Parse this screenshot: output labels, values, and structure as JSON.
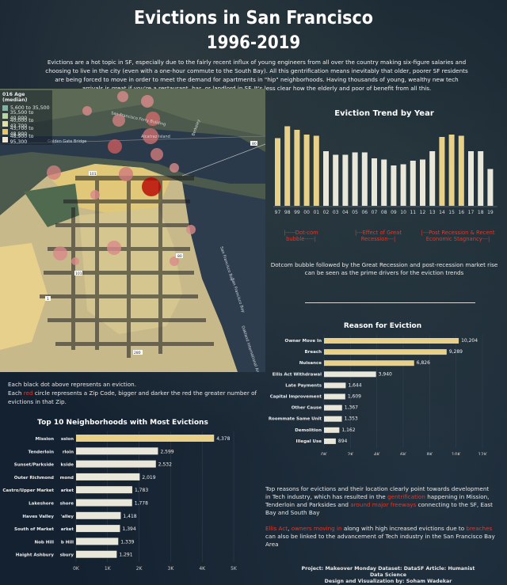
{
  "header": {
    "title": "Evictions in San Francisco",
    "years": "1996-2019",
    "intro": "Evictions are a hot topic in SF, especially due to the fairly recent influx of young engineers from all over the country making six-figure salaries and choosing to live in the city (even with a one-hour commute to the South Bay). All this gentrification means inevitably that older, poorer SF residents are being forced to move in order to meet the demand for apartments in \"hip\" neighborhoods. Having thousands of young, wealthy new tech arrivals is great if you're a restaurant, bar, or landlord in SF. It's less clear how the elderly and poor of benefit from all this."
  },
  "map": {
    "legend_title": "016 Age (median)",
    "legend": [
      {
        "label": "5,600 to 35,500",
        "color": "#7fb3a6"
      },
      {
        "label": "35,500 to 40,000",
        "color": "#b9d6a0"
      },
      {
        "label": "40,000 to 43,700",
        "color": "#e4e1a4"
      },
      {
        "label": "43,700 to 48,900",
        "color": "#e9c46a"
      },
      {
        "label": "48,900 to 95,300",
        "color": "#f3e7c9"
      }
    ],
    "labels": [
      "San Francisco Ferry Building",
      "Golden Gate Bridge",
      "Alcatraz Island",
      "Berkeley",
      "San Francisco Bay",
      "San Francisco Bay",
      "Oakland International Airport"
    ],
    "highway_shields": [
      "101",
      "101",
      "80",
      "80",
      "1",
      "280"
    ],
    "note_line1": "Each black dot above represents an eviction.",
    "note_line2_pre": "Each ",
    "note_line2_red": "red",
    "note_line2_post": " circle represents a Zip Code, bigger and darker the red the greater number of evictions in that Zip."
  },
  "trend": {
    "title": "Eviction Trend by Year",
    "phases": [
      {
        "label": "|-----Dot-com bubble-----|"
      },
      {
        "label": "|---Effect of Great Recession---|"
      },
      {
        "label": "|---Post Recession & Recent Economic Stagnancy---|"
      }
    ],
    "annotation": "Dotcom bubble followed by the Great Recession and post-recession market rise can be seen as the prime drivers for the eviction trends"
  },
  "reasons_title": "Reason for Eviction",
  "neighborhoods_title": "Top 10 Neighborhoods with Most Evictions",
  "bottom": {
    "p1_a": "Top reasons for evictions and their location clearly point towards development in Tech industry, which has resulted in the ",
    "p1_b": "gentrification",
    "p1_c": " happening in Mission, Tenderloin and Parksides and ",
    "p1_d": "around major freeways",
    "p1_e": " connecting to the SF, East Bay and South Bay",
    "p2_a": "Ellis Act",
    "p2_b": ", ",
    "p2_c": "owners moving in",
    "p2_d": " along with high increased evictions due to ",
    "p2_e": "breaches",
    "p2_f": " can also be linked to the advancement of Tech industry in the San Francisco Bay Area"
  },
  "credits": {
    "line1": "Project: Makeover Monday    Dataset: DataSF    Article: Humanist Data Science",
    "line2": "Design and Visualization by: Soham Wadekar"
  },
  "colors": {
    "highlight": "#e8d088",
    "bar_light": "#e9e6da",
    "accent_red": "#e0392b"
  },
  "chart_data": [
    {
      "type": "bar",
      "title": "Eviction Trend by Year",
      "categories": [
        "97",
        "98",
        "99",
        "00",
        "01",
        "02",
        "03",
        "04",
        "05",
        "06",
        "07",
        "08",
        "09",
        "10",
        "11",
        "12",
        "13",
        "14",
        "15",
        "16",
        "17",
        "18",
        "19"
      ],
      "values": [
        2850,
        3350,
        3200,
        3000,
        2950,
        2300,
        2150,
        2150,
        2250,
        2250,
        2000,
        1950,
        1700,
        1750,
        1900,
        1950,
        2300,
        2900,
        3000,
        2950,
        2300,
        2300,
        1550
      ],
      "highlighted": [
        "97",
        "98",
        "99",
        "00",
        "01",
        "14",
        "15",
        "16"
      ],
      "ylim": [
        0,
        3500
      ]
    },
    {
      "type": "bar",
      "title": "Reason for Eviction",
      "categories": [
        "Owner Move In",
        "Breach",
        "Nuisance",
        "Ellis Act Withdrawal",
        "Late Payments",
        "Capital Improvement",
        "Other Cause",
        "Roommate Same Unit",
        "Demolition",
        "Illegal Use"
      ],
      "values": [
        10204,
        9289,
        6826,
        3940,
        1644,
        1609,
        1367,
        1353,
        1162,
        894
      ],
      "value_labels": [
        "10,204",
        "9,289",
        "6,826",
        "3,940",
        "1,644",
        "1,609",
        "1,367",
        "1,353",
        "1,162",
        "894"
      ],
      "highlighted": [
        "Owner Move In",
        "Breach",
        "Nuisance"
      ],
      "xlim": [
        0,
        12000
      ],
      "xticks": [
        "0K",
        "2K",
        "4K",
        "6K",
        "8K",
        "10K",
        "12K"
      ]
    },
    {
      "type": "bar",
      "title": "Top 10 Neighborhoods with Most Evictions",
      "categories": [
        "Mission",
        "Tenderloin",
        "Sunset/Parkside",
        "Outer Richmond",
        "Castro/Upper Market",
        "Lakeshore",
        "Haves Valley",
        "South of Market",
        "Nob Hill",
        "Haight Ashbury"
      ],
      "short_labels": [
        "ssion",
        "rloin",
        "kside",
        "mond",
        "arket",
        "shore",
        "'alley",
        "arket",
        "b Hill",
        "sbury"
      ],
      "values": [
        4378,
        2599,
        2532,
        2019,
        1783,
        1778,
        1418,
        1394,
        1339,
        1291
      ],
      "value_labels": [
        "4,378",
        "2,599",
        "2,532",
        "2,019",
        "1,783",
        "1,778",
        "1,418",
        "1,394",
        "1,339",
        "1,291"
      ],
      "highlighted": [
        "Mission"
      ],
      "xlim": [
        0,
        5000
      ],
      "xticks": [
        "0K",
        "1K",
        "2K",
        "3K",
        "4K",
        "5K"
      ]
    }
  ]
}
